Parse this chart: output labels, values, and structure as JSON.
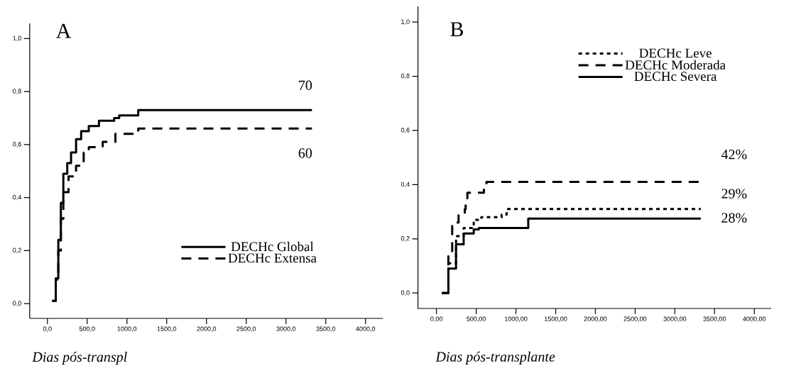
{
  "chart_data": [
    {
      "type": "step",
      "title": "A",
      "xlabel": "Dias pós-transpl",
      "xlim": [
        -223,
        4219
      ],
      "ylim": [
        -0.056,
        1.057
      ],
      "xticks": [
        {
          "value": 0,
          "label": "0,0"
        },
        {
          "value": 500,
          "label": "500,0"
        },
        {
          "value": 1000,
          "label": "1000,0"
        },
        {
          "value": 1500,
          "label": "1500,0"
        },
        {
          "value": 2000,
          "label": "2000,0"
        },
        {
          "value": 2500,
          "label": "2500,0"
        },
        {
          "value": 3000,
          "label": "3000,0"
        },
        {
          "value": 3500,
          "label": "3500,0"
        },
        {
          "value": 4000,
          "label": "4000,0"
        }
      ],
      "yticks": [
        {
          "value": 0,
          "label": "0,0"
        },
        {
          "value": 0.2,
          "label": "0,2"
        },
        {
          "value": 0.4,
          "label": "0,4"
        },
        {
          "value": 0.6,
          "label": "0,6"
        },
        {
          "value": 0.8,
          "label": "0,8"
        },
        {
          "value": 1,
          "label": "1,0"
        }
      ],
      "legend": "bottom right",
      "series": [
        {
          "name": "DECHc Global",
          "color": "#000000",
          "line_style": "solid",
          "x": [
            60,
            105,
            137,
            169,
            200,
            249,
            297,
            360,
            424,
            520,
            648,
            839,
            902,
            1142,
            3326
          ],
          "values": [
            0.01,
            0.095,
            0.24,
            0.38,
            0.49,
            0.53,
            0.57,
            0.62,
            0.65,
            0.67,
            0.69,
            0.7,
            0.71,
            0.73,
            0.73
          ]
        },
        {
          "name": "DECHc Extensa",
          "color": "#000000",
          "line_style": "dashed",
          "x": [
            60,
            105,
            137,
            169,
            200,
            265,
            360,
            456,
            520,
            695,
            855,
            1142,
            3326
          ],
          "values": [
            0.01,
            0.09,
            0.2,
            0.32,
            0.42,
            0.48,
            0.52,
            0.57,
            0.59,
            0.61,
            0.64,
            0.66,
            0.66
          ]
        }
      ],
      "annotations": [
        "70",
        "60"
      ]
    },
    {
      "type": "step",
      "title": "B",
      "xlabel": "Dias pós-transplante",
      "xlim": [
        -233,
        4213
      ],
      "ylim": [
        -0.057,
        1.058
      ],
      "xticks": [
        {
          "value": 0,
          "label": "0,00"
        },
        {
          "value": 500,
          "label": "500,00"
        },
        {
          "value": 1000,
          "label": "1000,00"
        },
        {
          "value": 1500,
          "label": "1500,00"
        },
        {
          "value": 2000,
          "label": "2000,00"
        },
        {
          "value": 2500,
          "label": "2500,00"
        },
        {
          "value": 3000,
          "label": "3000,00"
        },
        {
          "value": 3500,
          "label": "3500,00"
        },
        {
          "value": 4000,
          "label": "4000,00"
        }
      ],
      "yticks": [
        {
          "value": 0,
          "label": "0,0"
        },
        {
          "value": 0.2,
          "label": "0,2"
        },
        {
          "value": 0.4,
          "label": "0,4"
        },
        {
          "value": 0.6,
          "label": "0,6"
        },
        {
          "value": 0.8,
          "label": "0,8"
        },
        {
          "value": 1,
          "label": "1,0"
        }
      ],
      "legend": "top right",
      "series": [
        {
          "name": "DECHc Leve",
          "color": "#000000",
          "line_style": "dotted",
          "x": [
            70,
            150,
            246,
            342,
            469,
            565,
            820,
            884,
            3326
          ],
          "values": [
            0.0,
            0.11,
            0.21,
            0.24,
            0.27,
            0.28,
            0.29,
            0.31,
            0.31
          ]
        },
        {
          "name": "DECHc Moderada",
          "color": "#000000",
          "line_style": "dashed",
          "x": [
            70,
            150,
            198,
            278,
            357,
            367,
            389,
            597,
            629,
            3310
          ],
          "values": [
            0.0,
            0.15,
            0.26,
            0.29,
            0.31,
            0.35,
            0.37,
            0.39,
            0.41,
            0.41
          ]
        },
        {
          "name": "DECHc Severa",
          "color": "#000000",
          "line_style": "solid",
          "x": [
            70,
            150,
            246,
            342,
            469,
            533,
            1155,
            3326
          ],
          "values": [
            0.0,
            0.09,
            0.18,
            0.22,
            0.235,
            0.24,
            0.275,
            0.275
          ]
        }
      ],
      "annotations": [
        "42%",
        "29%",
        "28%"
      ]
    }
  ]
}
